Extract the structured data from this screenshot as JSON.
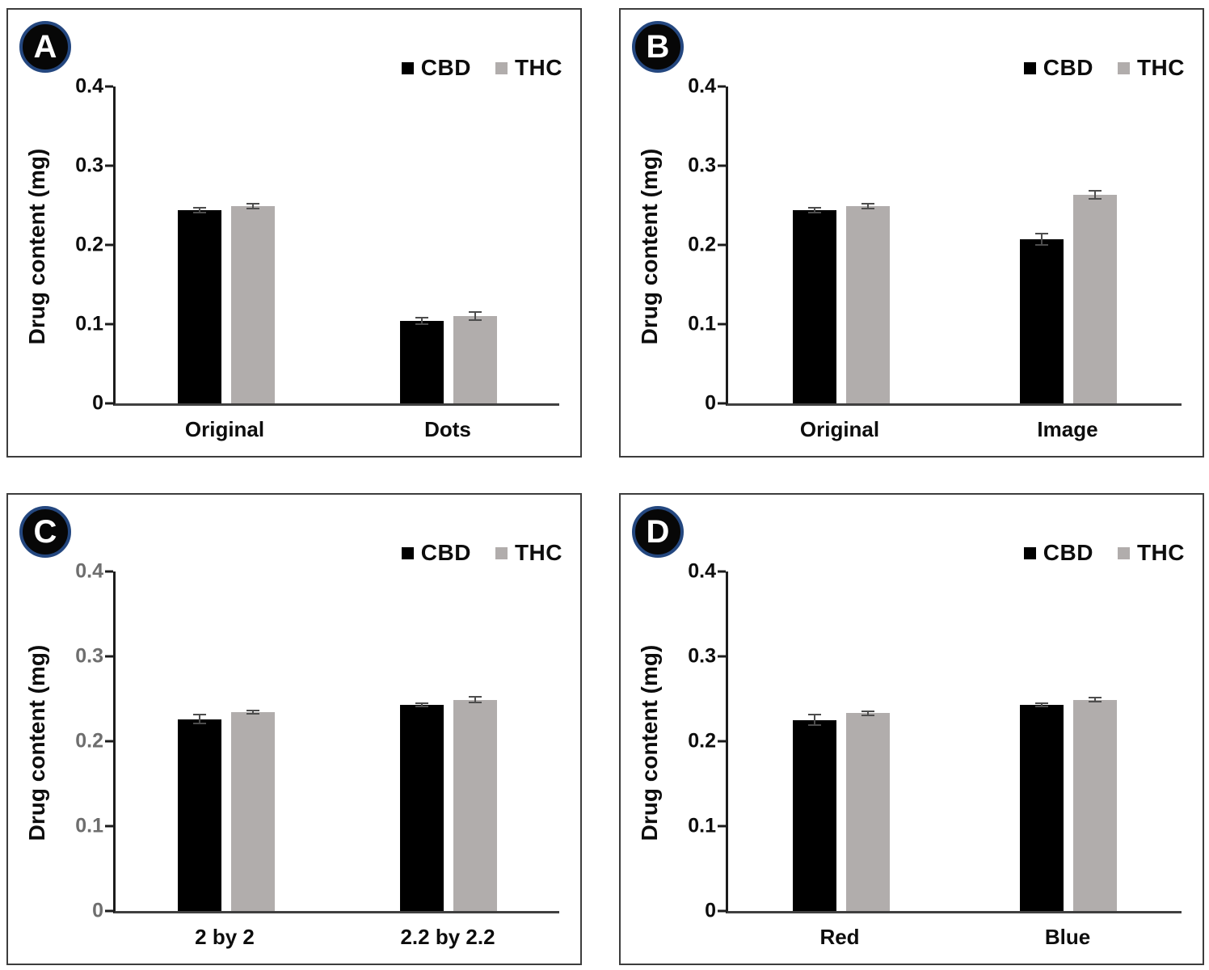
{
  "figure": {
    "ylabel": "Drug content (mg)",
    "legend": [
      {
        "label": "CBD",
        "color": "#000000"
      },
      {
        "label": "THC",
        "color": "#b1adac"
      }
    ],
    "badge_ring_color": "#24477f",
    "error_bar_color": "#4d4d4d"
  },
  "chart_data": [
    {
      "type": "bar",
      "panel": "A",
      "title": "",
      "xlabel": "",
      "ylabel": "Drug content (mg)",
      "categories": [
        "Original",
        "Dots"
      ],
      "series": [
        {
          "name": "CBD",
          "color": "#000000",
          "values": [
            0.244,
            0.104
          ],
          "errors": [
            0.004,
            0.005
          ]
        },
        {
          "name": "THC",
          "color": "#b1adac",
          "values": [
            0.249,
            0.11
          ],
          "errors": [
            0.004,
            0.006
          ]
        }
      ],
      "ylim": [
        0,
        0.4
      ],
      "yticks": [
        0,
        0.1,
        0.2,
        0.3,
        0.4
      ],
      "ytick_labels": [
        "0",
        "0.1",
        "0.2",
        "0.3",
        "0.4"
      ],
      "tick_color": "#0d0d0d",
      "grid": false,
      "legend_position": "top-right"
    },
    {
      "type": "bar",
      "panel": "B",
      "title": "",
      "xlabel": "",
      "ylabel": "Drug content (mg)",
      "categories": [
        "Original",
        "Image"
      ],
      "series": [
        {
          "name": "CBD",
          "color": "#000000",
          "values": [
            0.244,
            0.207
          ],
          "errors": [
            0.004,
            0.008
          ]
        },
        {
          "name": "THC",
          "color": "#b1adac",
          "values": [
            0.249,
            0.263
          ],
          "errors": [
            0.004,
            0.006
          ]
        }
      ],
      "ylim": [
        0,
        0.4
      ],
      "yticks": [
        0,
        0.1,
        0.2,
        0.3,
        0.4
      ],
      "ytick_labels": [
        "0",
        "0.1",
        "0.2",
        "0.3",
        "0.4"
      ],
      "tick_color": "#0d0d0d",
      "grid": false,
      "legend_position": "top-right"
    },
    {
      "type": "bar",
      "panel": "C",
      "title": "",
      "xlabel": "",
      "ylabel": "Drug content (mg)",
      "categories": [
        "2 by 2",
        "2.2 by 2.2"
      ],
      "series": [
        {
          "name": "CBD",
          "color": "#000000",
          "values": [
            0.226,
            0.243
          ],
          "errors": [
            0.006,
            0.003
          ]
        },
        {
          "name": "THC",
          "color": "#b1adac",
          "values": [
            0.234,
            0.249
          ],
          "errors": [
            0.003,
            0.004
          ]
        }
      ],
      "ylim": [
        0,
        0.4
      ],
      "yticks": [
        0,
        0.1,
        0.2,
        0.3,
        0.4
      ],
      "ytick_labels": [
        "0",
        "0.1",
        "0.2",
        "0.3",
        "0.4"
      ],
      "tick_color": "#6e6e6e",
      "grid": false,
      "legend_position": "top-right"
    },
    {
      "type": "bar",
      "panel": "D",
      "title": "",
      "xlabel": "",
      "ylabel": "Drug content (mg)",
      "categories": [
        "Red",
        "Blue"
      ],
      "series": [
        {
          "name": "CBD",
          "color": "#000000",
          "values": [
            0.225,
            0.243
          ],
          "errors": [
            0.007,
            0.003
          ]
        },
        {
          "name": "THC",
          "color": "#b1adac",
          "values": [
            0.233,
            0.249
          ],
          "errors": [
            0.003,
            0.003
          ]
        }
      ],
      "ylim": [
        0,
        0.4
      ],
      "yticks": [
        0,
        0.1,
        0.2,
        0.3,
        0.4
      ],
      "ytick_labels": [
        "0",
        "0.1",
        "0.2",
        "0.3",
        "0.4"
      ],
      "tick_color": "#0d0d0d",
      "grid": false,
      "legend_position": "top-right"
    }
  ]
}
